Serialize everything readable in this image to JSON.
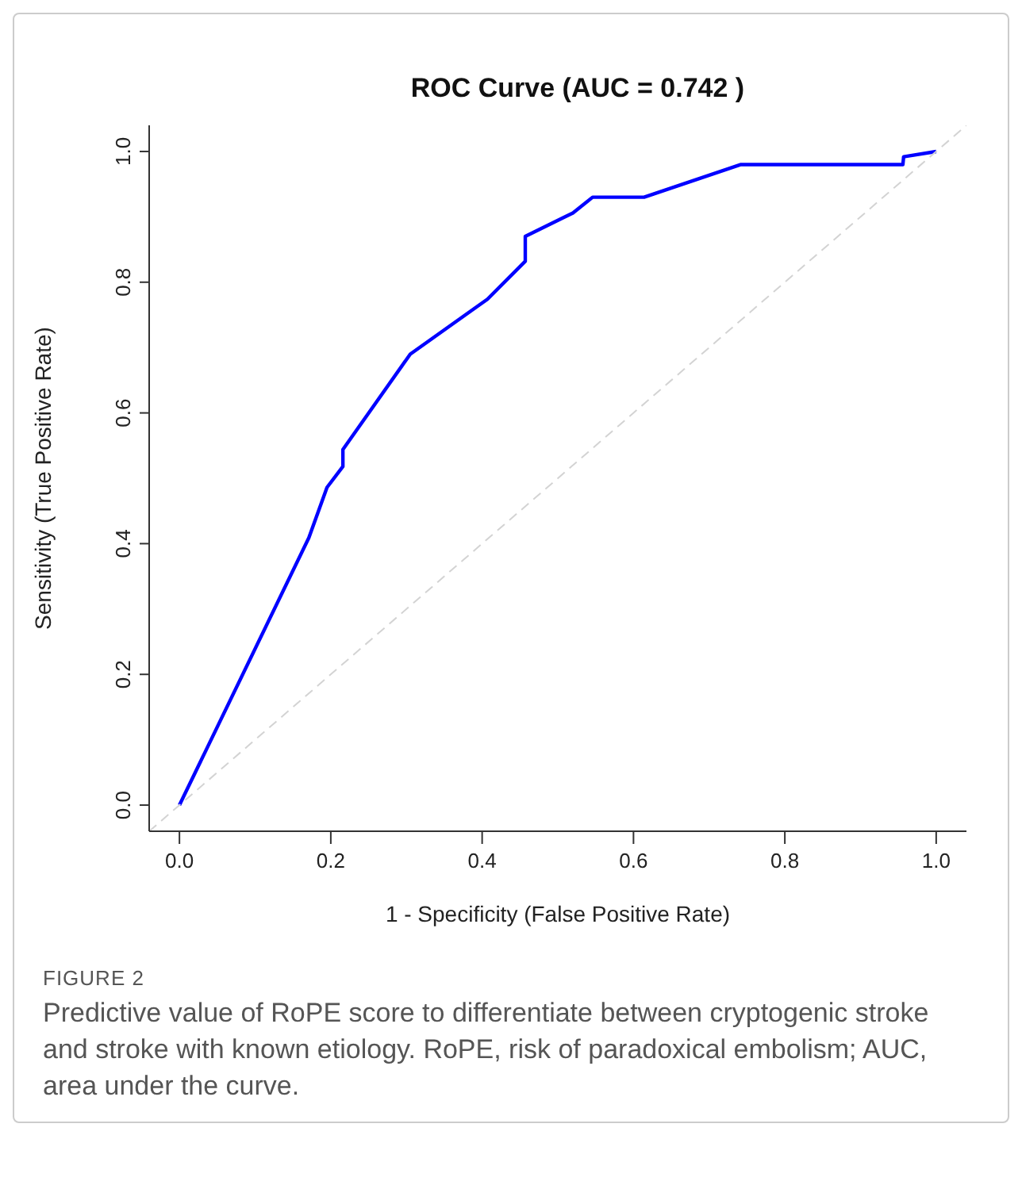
{
  "chart_data": {
    "type": "line",
    "title": "ROC Curve (AUC = 0.742 )",
    "xlabel": "1 - Specificity (False Positive Rate)",
    "ylabel": "Sensitivity (True Positive Rate)",
    "series": [
      {
        "color": "#0000ff",
        "x": [
          0,
          0.171,
          0.195,
          0.216,
          0.216,
          0.305,
          0.39,
          0.407,
          0.457,
          0.457,
          0.506,
          0.52,
          0.546,
          0.614,
          0.742,
          0.956,
          0.957,
          1.0
        ],
        "values": [
          0,
          0.409,
          0.486,
          0.518,
          0.544,
          0.69,
          0.76,
          0.774,
          0.832,
          0.87,
          0.898,
          0.906,
          0.93,
          0.93,
          0.98,
          0.98,
          0.992,
          1.0
        ]
      },
      {
        "color": "#d3d3d3",
        "line_style": "dashed",
        "x": [
          -0.04,
          1.04
        ],
        "values": [
          -0.04,
          1.04
        ]
      }
    ],
    "xlim": [
      -0.04,
      1.04
    ],
    "ylim": [
      -0.04,
      1.04
    ],
    "xticks": [
      {
        "value": 0,
        "label": "0.0"
      },
      {
        "value": 0.2,
        "label": "0.2"
      },
      {
        "value": 0.4,
        "label": "0.4"
      },
      {
        "value": 0.6,
        "label": "0.6"
      },
      {
        "value": 0.8,
        "label": "0.8"
      },
      {
        "value": 1,
        "label": "1.0"
      }
    ],
    "yticks": [
      {
        "value": 0,
        "label": "0.0"
      },
      {
        "value": 0.2,
        "label": "0.2"
      },
      {
        "value": 0.4,
        "label": "0.4"
      },
      {
        "value": 0.6,
        "label": "0.6"
      },
      {
        "value": 0.8,
        "label": "0.8"
      },
      {
        "value": 1,
        "label": "1.0"
      }
    ],
    "grid": false,
    "legend": false,
    "marker": "none",
    "line_style": "solid",
    "annotations": [
      "FIGURE 2",
      "Predictive value of RoPE score to differentiate between cryptogenic stroke and stroke with known etiology. RoPE, risk of paradoxical embolism; AUC, area under the curve."
    ]
  }
}
